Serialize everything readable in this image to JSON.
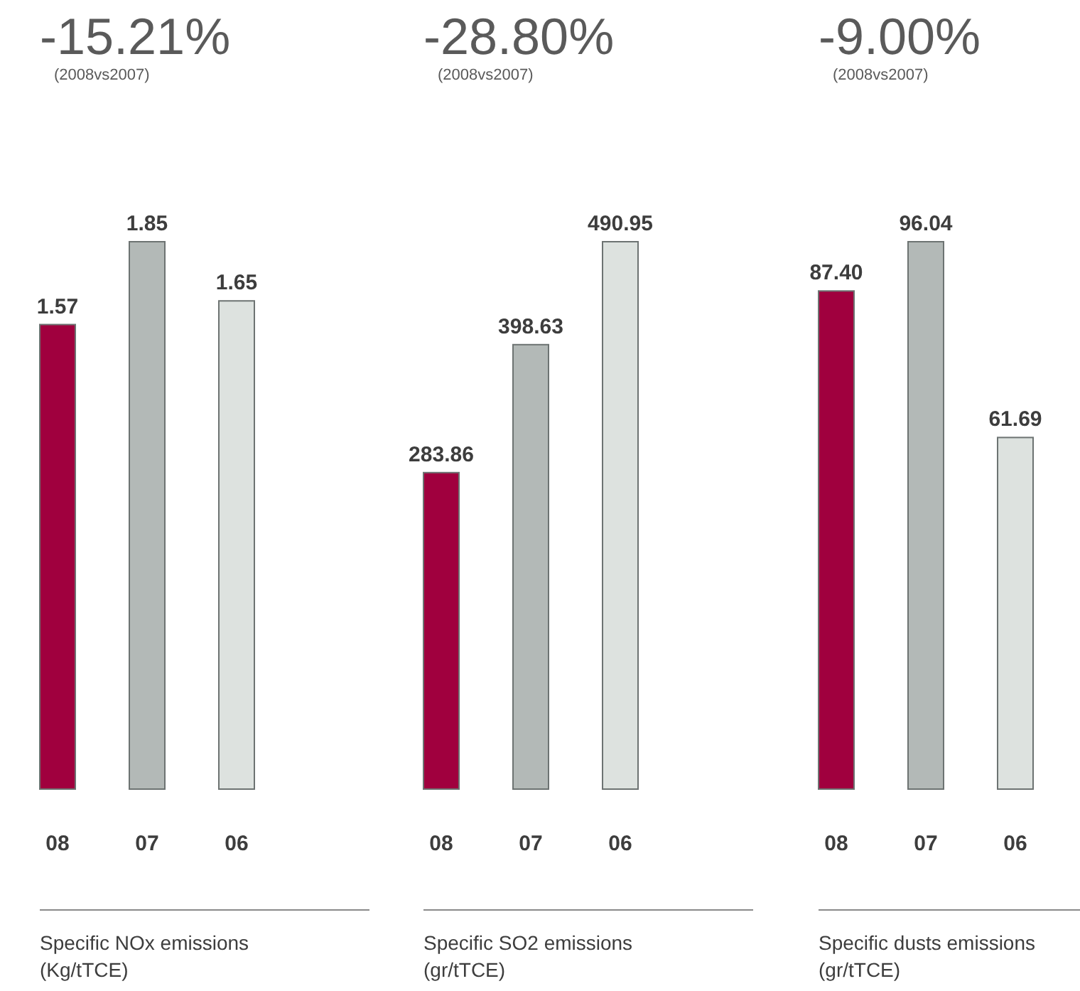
{
  "chart_data": [
    {
      "type": "bar",
      "title": "-15.21%",
      "subtitle": "(2008vs2007)",
      "categories": [
        "08",
        "07",
        "06"
      ],
      "values": [
        1.57,
        1.85,
        1.65
      ],
      "colors": [
        "#a0003e",
        "#b3b9b7",
        "#dde2df"
      ],
      "value_labels": [
        "1.57",
        "1.85",
        "1.65"
      ],
      "xlabel": "Specific NOx emissions (Kg/tTCE)"
    },
    {
      "type": "bar",
      "title": "-28.80%",
      "subtitle": "(2008vs2007)",
      "categories": [
        "08",
        "07",
        "06"
      ],
      "values": [
        283.86,
        398.63,
        490.95
      ],
      "colors": [
        "#a0003e",
        "#b3b9b7",
        "#dde2df"
      ],
      "value_labels": [
        "283.86",
        "398.63",
        "490.95"
      ],
      "xlabel": "Specific SO2 emissions (gr/tTCE)"
    },
    {
      "type": "bar",
      "title": "-9.00%",
      "subtitle": "(2008vs2007)",
      "categories": [
        "08",
        "07",
        "06"
      ],
      "values": [
        87.4,
        96.04,
        61.69
      ],
      "colors": [
        "#a0003e",
        "#b3b9b7",
        "#dde2df"
      ],
      "value_labels": [
        "87.40",
        "96.04",
        "61.69"
      ],
      "xlabel": "Specific dusts emissions (gr/tTCE)"
    }
  ]
}
